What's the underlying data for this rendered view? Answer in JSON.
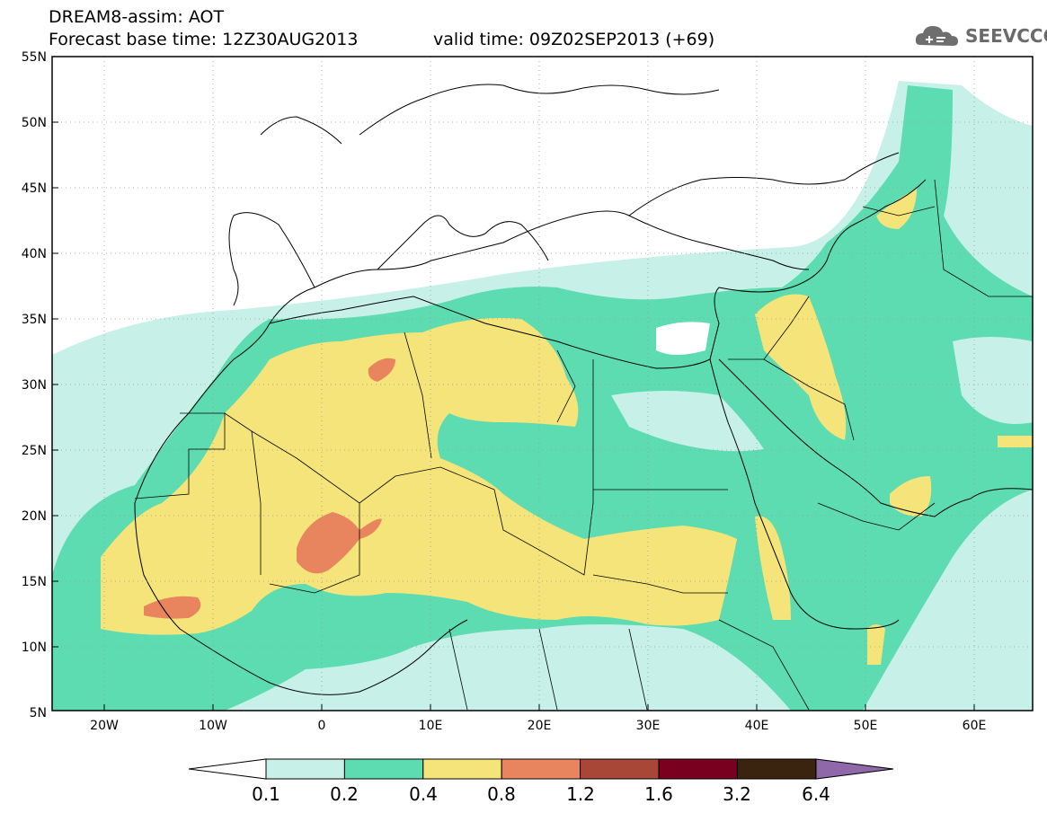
{
  "title_line1": "DREAM8-assim: AOT",
  "base_time_line": "Forecast base time: 12Z30AUG2013",
  "valid_time_line": "valid time: 09Z02SEP2013 (+69)",
  "logo_text": "SEEVCCC",
  "lat_labels": [
    "55N",
    "50N",
    "45N",
    "40N",
    "35N",
    "30N",
    "25N",
    "20N",
    "15N",
    "10N",
    "5N"
  ],
  "lon_labels": [
    "20W",
    "10W",
    "0",
    "10E",
    "20E",
    "30E",
    "40E",
    "50E",
    "60E"
  ],
  "colorbar": {
    "colors": [
      "#c6f0e8",
      "#5cdcb0",
      "#f5e47a",
      "#e8845e",
      "#a84638",
      "#7a0020",
      "#3a2410",
      "#8e68a8"
    ],
    "thresholds": [
      "0.1",
      "0.2",
      "0.4",
      "0.8",
      "1.2",
      "1.6",
      "3.2",
      "6.4"
    ]
  },
  "map": {
    "region": "North Africa, Middle East, Europe",
    "lon_range": [
      "25W",
      "65E"
    ],
    "lat_range": [
      "5N",
      "55N"
    ],
    "variable": "AOT"
  }
}
